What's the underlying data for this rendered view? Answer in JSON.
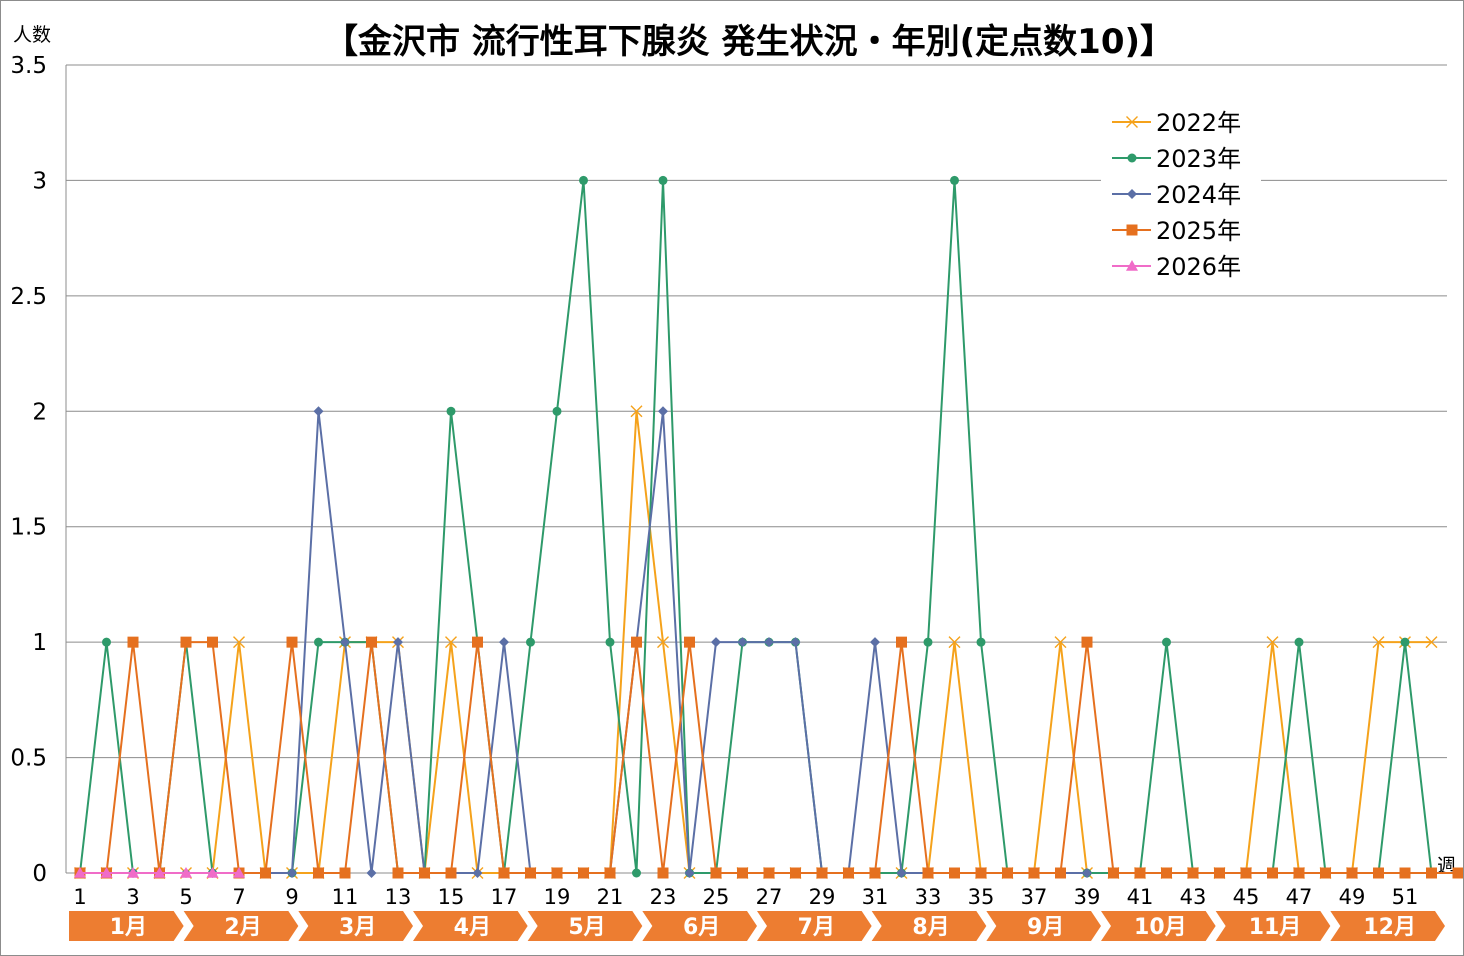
{
  "chart_data": {
    "type": "line",
    "title": "【金沢市 流行性耳下腺炎 発生状況・年別(定点数10)】",
    "ylabel": "人数",
    "xlabel": "週",
    "ylim": [
      0,
      3.5
    ],
    "yticks": [
      "0",
      "0.5",
      "1",
      "1.5",
      "2",
      "2.5",
      "3",
      "3.5"
    ],
    "ytick_values": [
      0,
      0.5,
      1,
      1.5,
      2,
      2.5,
      3,
      3.5
    ],
    "x": [
      1,
      2,
      3,
      4,
      5,
      6,
      7,
      8,
      9,
      10,
      11,
      12,
      13,
      14,
      15,
      16,
      17,
      18,
      19,
      20,
      21,
      22,
      23,
      24,
      25,
      26,
      27,
      28,
      29,
      30,
      31,
      32,
      33,
      34,
      35,
      36,
      37,
      38,
      39,
      40,
      41,
      42,
      43,
      44,
      45,
      46,
      47,
      48,
      49,
      50,
      51,
      52,
      53
    ],
    "xtick_labels": [
      "1",
      "3",
      "5",
      "7",
      "9",
      "11",
      "13",
      "15",
      "17",
      "19",
      "21",
      "23",
      "25",
      "27",
      "29",
      "31",
      "33",
      "35",
      "37",
      "39",
      "41",
      "43",
      "45",
      "47",
      "49",
      "51"
    ],
    "months": [
      "1月",
      "2月",
      "3月",
      "4月",
      "5月",
      "6月",
      "7月",
      "8月",
      "9月",
      "10月",
      "11月",
      "12月"
    ],
    "grid": true,
    "legend_position": "top-right",
    "series": [
      {
        "name": "2022年",
        "color": "#f5a21b",
        "marker": "x",
        "values": [
          0,
          0,
          0,
          0,
          0,
          0,
          1,
          0,
          0,
          0,
          1,
          1,
          1,
          0,
          1,
          0,
          0,
          0,
          0,
          0,
          0,
          2,
          1,
          0,
          0,
          0,
          0,
          0,
          0,
          0,
          0,
          0,
          0,
          1,
          0,
          0,
          0,
          1,
          0,
          0,
          0,
          0,
          0,
          0,
          0,
          1,
          0,
          0,
          0,
          1,
          1,
          1,
          null
        ]
      },
      {
        "name": "2023年",
        "color": "#2e9a6a",
        "marker": "circle",
        "values": [
          0,
          1,
          0,
          0,
          1,
          0,
          0,
          0,
          0,
          1,
          1,
          1,
          0,
          0,
          2,
          1,
          0,
          1,
          2,
          3,
          1,
          0,
          3,
          0,
          0,
          1,
          1,
          1,
          0,
          0,
          0,
          0,
          1,
          3,
          1,
          0,
          0,
          0,
          0,
          0,
          0,
          1,
          0,
          0,
          0,
          0,
          1,
          0,
          0,
          0,
          1,
          0,
          null
        ]
      },
      {
        "name": "2024年",
        "color": "#5b6fa6",
        "marker": "diamond",
        "values": [
          0,
          0,
          0,
          0,
          0,
          0,
          0,
          0,
          0,
          2,
          1,
          0,
          1,
          0,
          0,
          0,
          1,
          0,
          0,
          0,
          0,
          1,
          2,
          0,
          1,
          1,
          1,
          1,
          0,
          0,
          1,
          0,
          0,
          0,
          0,
          0,
          0,
          0,
          0,
          null,
          null,
          null,
          null,
          null,
          null,
          null,
          null,
          null,
          null,
          null,
          null,
          null,
          null
        ]
      },
      {
        "name": "2025年",
        "color": "#e5701f",
        "marker": "square",
        "values": [
          0,
          0,
          1,
          0,
          1,
          1,
          0,
          0,
          1,
          0,
          0,
          1,
          0,
          0,
          0,
          1,
          0,
          0,
          0,
          0,
          0,
          1,
          0,
          1,
          0,
          0,
          0,
          0,
          0,
          0,
          0,
          1,
          0,
          0,
          0,
          0,
          0,
          0,
          1,
          0,
          0,
          0,
          0,
          0,
          0,
          0,
          0,
          0,
          0,
          0,
          0,
          0,
          0
        ]
      },
      {
        "name": "2026年",
        "color": "#f06cc8",
        "marker": "triangle",
        "values": [
          0,
          0,
          0,
          0,
          0,
          0,
          0,
          null,
          null,
          null,
          null,
          null,
          null,
          null,
          null,
          null,
          null,
          null,
          null,
          null,
          null,
          null,
          null,
          null,
          null,
          null,
          null,
          null,
          null,
          null,
          null,
          null,
          null,
          null,
          null,
          null,
          null,
          null,
          null,
          null,
          null,
          null,
          null,
          null,
          null,
          null,
          null,
          null,
          null,
          null,
          null,
          null,
          null
        ]
      }
    ]
  }
}
